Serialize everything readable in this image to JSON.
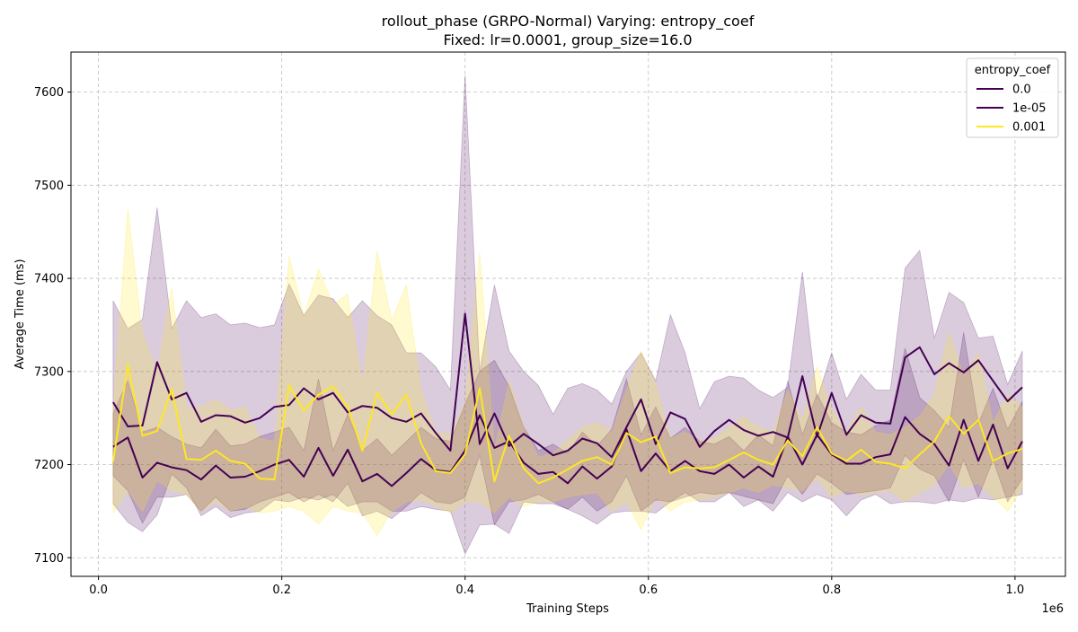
{
  "chart_data": {
    "type": "line",
    "title": "rollout_phase (GRPO-Normal) Varying: entropy_coef",
    "subtitle": "Fixed: lr=0.0001, group_size=16.0",
    "xlabel": "Training Steps",
    "ylabel": "Average Time (ms)",
    "x_scale_label": "1e6",
    "xlim": [
      -0.03,
      1.055
    ],
    "ylim": [
      7080,
      7643
    ],
    "xticks": [
      0.0,
      0.2,
      0.4,
      0.6,
      0.8,
      1.0
    ],
    "xtick_labels": [
      "0.0",
      "0.2",
      "0.4",
      "0.6",
      "0.8",
      "1.0"
    ],
    "yticks": [
      7100,
      7200,
      7300,
      7400,
      7500,
      7600
    ],
    "ytick_labels": [
      "7100",
      "7200",
      "7300",
      "7400",
      "7500",
      "7600"
    ],
    "grid": true,
    "legend": {
      "title": "entropy_coef",
      "placement": "top-right"
    },
    "x": [
      0.016,
      0.032,
      0.048,
      0.064,
      0.08,
      0.096,
      0.112,
      0.128,
      0.144,
      0.16,
      0.176,
      0.192,
      0.208,
      0.224,
      0.24,
      0.256,
      0.272,
      0.288,
      0.304,
      0.32,
      0.336,
      0.352,
      0.368,
      0.384,
      0.4,
      0.416,
      0.432,
      0.448,
      0.464,
      0.48,
      0.496,
      0.512,
      0.528,
      0.544,
      0.56,
      0.576,
      0.592,
      0.608,
      0.624,
      0.64,
      0.656,
      0.672,
      0.688,
      0.704,
      0.72,
      0.736,
      0.752,
      0.768,
      0.784,
      0.8,
      0.816,
      0.832,
      0.848,
      0.864,
      0.88,
      0.896,
      0.912,
      0.928,
      0.944,
      0.96,
      0.976,
      0.992,
      1.008
    ],
    "series": [
      {
        "name": "0.0",
        "color": "#440154",
        "band_opacity": 0.2,
        "values": [
          7267,
          7241,
          7242,
          7310,
          7270,
          7277,
          7246,
          7253,
          7252,
          7245,
          7250,
          7262,
          7264,
          7282,
          7270,
          7277,
          7256,
          7263,
          7261,
          7250,
          7246,
          7255,
          7234,
          7215,
          7362,
          7222,
          7255,
          7220,
          7233,
          7222,
          7210,
          7215,
          7228,
          7223,
          7208,
          7240,
          7270,
          7222,
          7256,
          7249,
          7219,
          7236,
          7248,
          7237,
          7231,
          7235,
          7229,
          7295,
          7230,
          7277,
          7232,
          7253,
          7245,
          7244,
          7315,
          7326,
          7297,
          7309,
          7299,
          7312,
          7290,
          7268,
          7283
        ],
        "lower": [
          7158,
          7138,
          7128,
          7146,
          7190,
          7175,
          7145,
          7155,
          7143,
          7148,
          7150,
          7162,
          7160,
          7165,
          7162,
          7168,
          7155,
          7160,
          7160,
          7150,
          7150,
          7155,
          7152,
          7150,
          7104,
          7135,
          7136,
          7126,
          7160,
          7158,
          7158,
          7152,
          7145,
          7136,
          7148,
          7150,
          7150,
          7148,
          7160,
          7165,
          7170,
          7168,
          7170,
          7166,
          7162,
          7150,
          7170,
          7160,
          7168,
          7162,
          7145,
          7162,
          7168,
          7158,
          7160,
          7160,
          7158,
          7162,
          7160,
          7164,
          7162,
          7165,
          7168
        ],
        "upper": [
          7376,
          7346,
          7356,
          7476,
          7346,
          7376,
          7358,
          7362,
          7350,
          7352,
          7347,
          7350,
          7394,
          7360,
          7382,
          7378,
          7358,
          7376,
          7360,
          7350,
          7320,
          7320,
          7305,
          7280,
          7618,
          7300,
          7393,
          7322,
          7300,
          7285,
          7254,
          7282,
          7287,
          7280,
          7265,
          7300,
          7320,
          7290,
          7361,
          7320,
          7260,
          7289,
          7295,
          7293,
          7280,
          7272,
          7283,
          7407,
          7270,
          7320,
          7270,
          7297,
          7280,
          7280,
          7411,
          7430,
          7336,
          7385,
          7374,
          7336,
          7338,
          7286,
          7322
        ]
      },
      {
        "name": "1e-05",
        "color": "#440154",
        "band_opacity": 0.2,
        "values": [
          7219,
          7229,
          7186,
          7202,
          7197,
          7194,
          7184,
          7199,
          7186,
          7187,
          7193,
          7200,
          7205,
          7187,
          7218,
          7188,
          7216,
          7182,
          7190,
          7177,
          7191,
          7206,
          7194,
          7192,
          7215,
          7253,
          7218,
          7225,
          7202,
          7190,
          7192,
          7180,
          7198,
          7185,
          7198,
          7238,
          7193,
          7212,
          7193,
          7204,
          7193,
          7190,
          7200,
          7186,
          7198,
          7187,
          7230,
          7200,
          7232,
          7211,
          7201,
          7201,
          7208,
          7211,
          7251,
          7233,
          7222,
          7199,
          7248,
          7204,
          7243,
          7196,
          7225
        ],
        "lower": [
          7188,
          7172,
          7137,
          7165,
          7165,
          7168,
          7150,
          7165,
          7150,
          7152,
          7160,
          7165,
          7170,
          7160,
          7168,
          7160,
          7180,
          7145,
          7150,
          7142,
          7155,
          7170,
          7160,
          7158,
          7165,
          7210,
          7135,
          7160,
          7162,
          7168,
          7160,
          7152,
          7165,
          7150,
          7160,
          7188,
          7150,
          7162,
          7160,
          7170,
          7160,
          7160,
          7170,
          7155,
          7162,
          7158,
          7188,
          7168,
          7190,
          7180,
          7168,
          7170,
          7172,
          7175,
          7210,
          7195,
          7188,
          7160,
          7205,
          7165,
          7205,
          7160,
          7185
        ],
        "upper": [
          7255,
          7290,
          7235,
          7240,
          7230,
          7222,
          7218,
          7238,
          7220,
          7222,
          7230,
          7235,
          7240,
          7215,
          7292,
          7215,
          7254,
          7215,
          7228,
          7210,
          7225,
          7240,
          7228,
          7225,
          7265,
          7300,
          7312,
          7284,
          7240,
          7215,
          7222,
          7212,
          7235,
          7220,
          7238,
          7292,
          7232,
          7262,
          7228,
          7240,
          7225,
          7222,
          7230,
          7215,
          7232,
          7220,
          7290,
          7232,
          7276,
          7245,
          7235,
          7232,
          7242,
          7248,
          7325,
          7272,
          7258,
          7240,
          7342,
          7244,
          7282,
          7238,
          7268
        ]
      },
      {
        "name": "0.001",
        "color": "#fde725",
        "band_opacity": 0.22,
        "values": [
          7203,
          7307,
          7231,
          7236,
          7281,
          7206,
          7205,
          7215,
          7204,
          7201,
          7185,
          7184,
          7285,
          7258,
          7275,
          7284,
          7262,
          7215,
          7277,
          7254,
          7275,
          7223,
          7193,
          7191,
          7211,
          7282,
          7182,
          7231,
          7196,
          7180,
          7186,
          7195,
          7204,
          7208,
          7200,
          7234,
          7224,
          7230,
          7191,
          7197,
          7196,
          7197,
          7205,
          7213,
          7205,
          7200,
          7226,
          7209,
          7240,
          7212,
          7204,
          7216,
          7203,
          7201,
          7196,
          7211,
          7225,
          7252,
          7233,
          7248,
          7204,
          7212,
          7217
        ],
        "lower": [
          7148,
          7172,
          7150,
          7183,
          7172,
          7168,
          7150,
          7160,
          7150,
          7155,
          7148,
          7150,
          7155,
          7150,
          7136,
          7155,
          7150,
          7148,
          7124,
          7150,
          7160,
          7162,
          7156,
          7148,
          7160,
          7160,
          7148,
          7165,
          7155,
          7160,
          7160,
          7165,
          7168,
          7170,
          7150,
          7160,
          7130,
          7165,
          7150,
          7160,
          7162,
          7165,
          7170,
          7175,
          7170,
          7178,
          7175,
          7172,
          7185,
          7165,
          7172,
          7168,
          7170,
          7172,
          7160,
          7170,
          7178,
          7200,
          7175,
          7180,
          7165,
          7150,
          7175
        ],
        "upper": [
          7260,
          7475,
          7340,
          7300,
          7390,
          7260,
          7262,
          7270,
          7258,
          7262,
          7228,
          7225,
          7424,
          7360,
          7410,
          7372,
          7383,
          7285,
          7430,
          7355,
          7393,
          7280,
          7235,
          7232,
          7265,
          7428,
          7216,
          7290,
          7240,
          7208,
          7212,
          7226,
          7240,
          7245,
          7235,
          7280,
          7322,
          7286,
          7228,
          7235,
          7225,
          7228,
          7240,
          7252,
          7240,
          7235,
          7280,
          7248,
          7305,
          7260,
          7235,
          7262,
          7235,
          7232,
          7240,
          7252,
          7275,
          7342,
          7295,
          7320,
          7245,
          7275,
          7262
        ]
      }
    ]
  }
}
